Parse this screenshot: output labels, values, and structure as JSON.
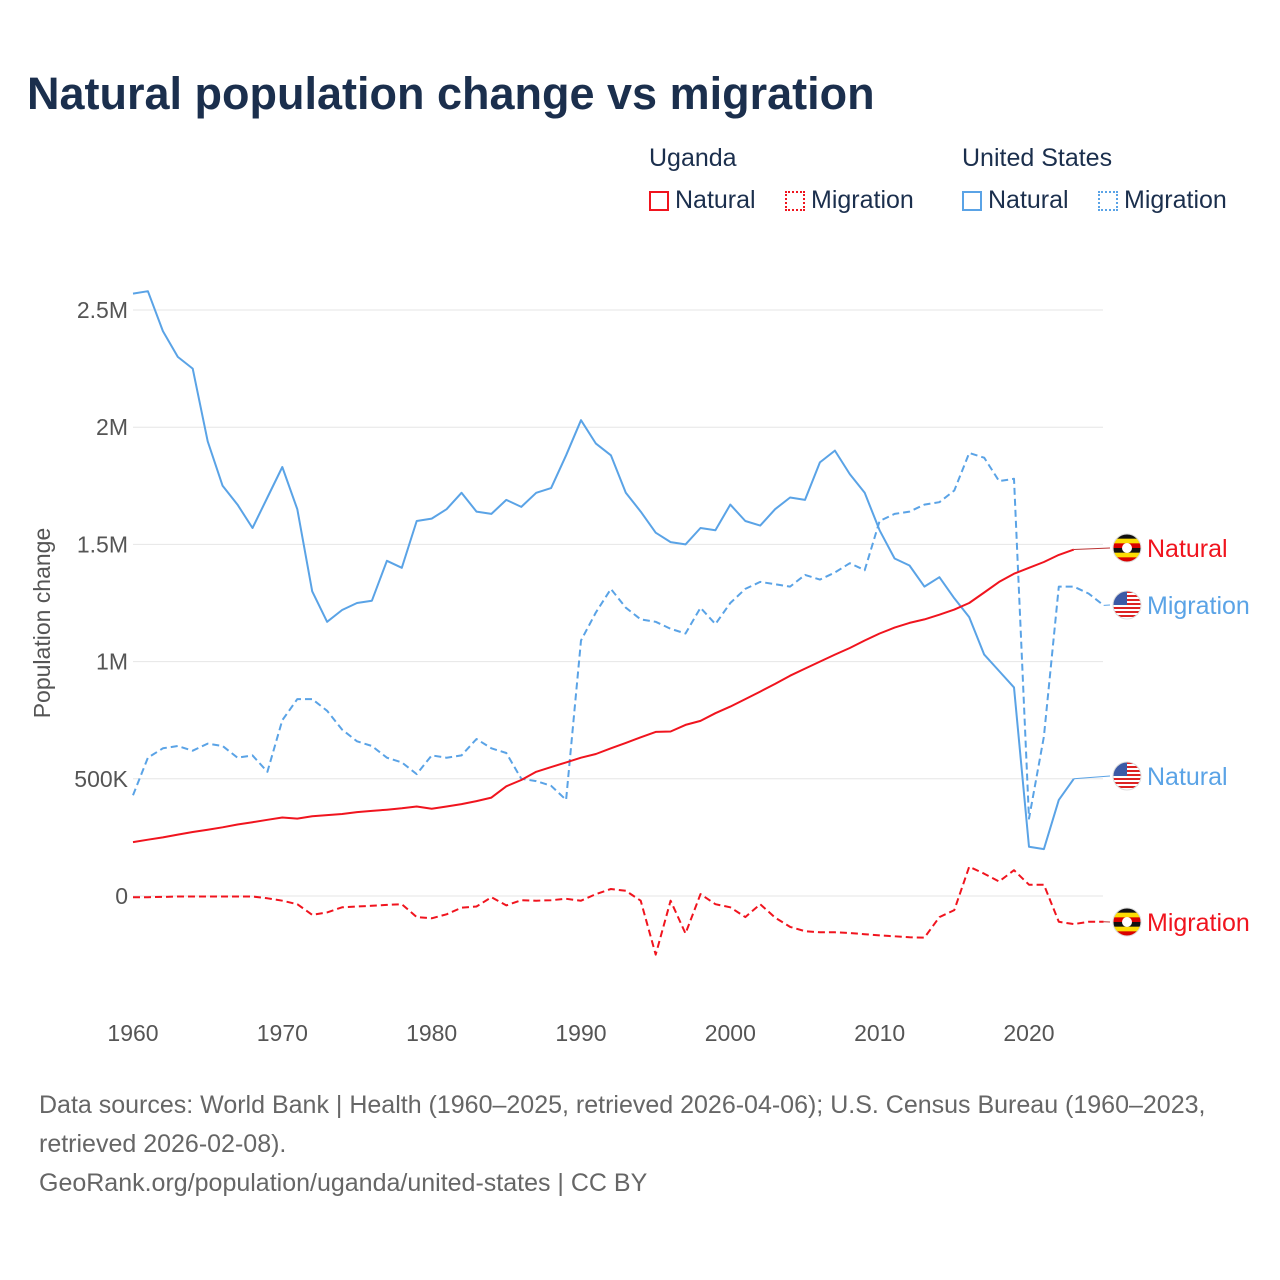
{
  "title": "Natural population change vs migration",
  "legend": {
    "groups": [
      {
        "name": "Uganda",
        "items": [
          {
            "label": "Natural",
            "style": "solid"
          },
          {
            "label": "Migration",
            "style": "dotted"
          }
        ],
        "color": "#f0141e"
      },
      {
        "name": "United States",
        "items": [
          {
            "label": "Natural",
            "style": "solid"
          },
          {
            "label": "Migration",
            "style": "dotted"
          }
        ],
        "color": "#5aa3e6"
      }
    ]
  },
  "footer": {
    "sources": "Data sources: World Bank | Health (1960–2025, retrieved 2026-04-06); U.S. Census Bureau (1960–2023, retrieved 2026-02-08).",
    "credit": "GeoRank.org/population/uganda/united-states | CC BY"
  },
  "chart_data": {
    "type": "line",
    "title": "Natural population change vs migration",
    "xlabel": "",
    "ylabel": "Population change",
    "xlim": [
      1960,
      2025
    ],
    "ylim": [
      -400000,
      2700000
    ],
    "x_ticks": [
      1960,
      1970,
      1980,
      1990,
      2000,
      2010,
      2020
    ],
    "x_tick_labels": [
      "1960",
      "1970",
      "1980",
      "1990",
      "2000",
      "2010",
      "2020"
    ],
    "y_ticks": [
      0,
      500000,
      1000000,
      1500000,
      2000000,
      2500000
    ],
    "y_tick_labels": [
      "0",
      "500K",
      "1M",
      "1.5M",
      "2M",
      "2.5M"
    ],
    "grid": true,
    "series": [
      {
        "name": "United States Natural",
        "end_label": "Natural",
        "country": "United States",
        "color": "#5aa3e6",
        "dash": false,
        "start_year": 1960,
        "values": [
          2570000,
          2580000,
          2410000,
          2300000,
          2250000,
          1940000,
          1750000,
          1670000,
          1570000,
          1700000,
          1830000,
          1650000,
          1300000,
          1170000,
          1220000,
          1250000,
          1260000,
          1430000,
          1400000,
          1600000,
          1610000,
          1650000,
          1720000,
          1640000,
          1630000,
          1690000,
          1660000,
          1720000,
          1740000,
          1880000,
          2030000,
          1930000,
          1880000,
          1720000,
          1640000,
          1550000,
          1510000,
          1500000,
          1570000,
          1560000,
          1670000,
          1600000,
          1580000,
          1650000,
          1700000,
          1690000,
          1850000,
          1900000,
          1800000,
          1720000,
          1560000,
          1440000,
          1410000,
          1320000,
          1360000,
          1270000,
          1190000,
          1030000,
          960000,
          890000,
          210000,
          200000,
          410000,
          500000
        ]
      },
      {
        "name": "United States Migration",
        "end_label": "Migration",
        "country": "United States",
        "color": "#5aa3e6",
        "dash": true,
        "start_year": 1960,
        "values": [
          430000,
          590000,
          630000,
          640000,
          620000,
          650000,
          640000,
          590000,
          600000,
          530000,
          750000,
          840000,
          840000,
          790000,
          710000,
          660000,
          640000,
          590000,
          570000,
          520000,
          600000,
          590000,
          600000,
          670000,
          630000,
          610000,
          500000,
          490000,
          470000,
          410000,
          1090000,
          1210000,
          1310000,
          1230000,
          1180000,
          1170000,
          1140000,
          1120000,
          1230000,
          1160000,
          1250000,
          1310000,
          1340000,
          1330000,
          1320000,
          1370000,
          1350000,
          1380000,
          1420000,
          1390000,
          1600000,
          1630000,
          1640000,
          1670000,
          1680000,
          1730000,
          1890000,
          1870000,
          1770000,
          1780000,
          330000,
          680000,
          1320000,
          1320000,
          1290000,
          1240000
        ]
      },
      {
        "name": "Uganda Natural",
        "end_label": "Natural",
        "country": "Uganda",
        "color": "#f0141e",
        "dash": false,
        "start_year": 1960,
        "values": [
          230000,
          240000,
          250000,
          262000,
          273000,
          283000,
          293000,
          305000,
          315000,
          325000,
          335000,
          330000,
          340000,
          345000,
          350000,
          358000,
          363000,
          368000,
          374000,
          382000,
          372000,
          382000,
          392000,
          405000,
          420000,
          468000,
          495000,
          530000,
          550000,
          570000,
          590000,
          606000,
          630000,
          653000,
          677000,
          700000,
          702000,
          730000,
          747000,
          780000,
          808000,
          840000,
          872000,
          905000,
          940000,
          970000,
          1000000,
          1030000,
          1058000,
          1090000,
          1120000,
          1145000,
          1165000,
          1180000,
          1200000,
          1222000,
          1250000,
          1295000,
          1340000,
          1375000,
          1400000,
          1425000,
          1455000,
          1478000
        ]
      },
      {
        "name": "Uganda Migration",
        "end_label": "Migration",
        "country": "Uganda",
        "color": "#f0141e",
        "dash": true,
        "start_year": 1960,
        "values": [
          -5000,
          -5000,
          -4000,
          -2000,
          -2000,
          -2000,
          -2000,
          -2000,
          -2000,
          -10000,
          -20000,
          -35000,
          -80000,
          -70000,
          -48000,
          -45000,
          -42000,
          -38000,
          -35000,
          -90000,
          -95000,
          -78000,
          -50000,
          -45000,
          -5000,
          -40000,
          -18000,
          -20000,
          -18000,
          -12000,
          -20000,
          8000,
          30000,
          22000,
          -20000,
          -250000,
          -20000,
          -160000,
          8000,
          -35000,
          -48000,
          -90000,
          -35000,
          -92000,
          -132000,
          -150000,
          -155000,
          -155000,
          -158000,
          -163000,
          -168000,
          -172000,
          -176000,
          -178000,
          -90000,
          -60000,
          125000,
          95000,
          62000,
          110000,
          48000,
          48000,
          -110000,
          -120000,
          -110000,
          -110000
        ]
      }
    ]
  }
}
